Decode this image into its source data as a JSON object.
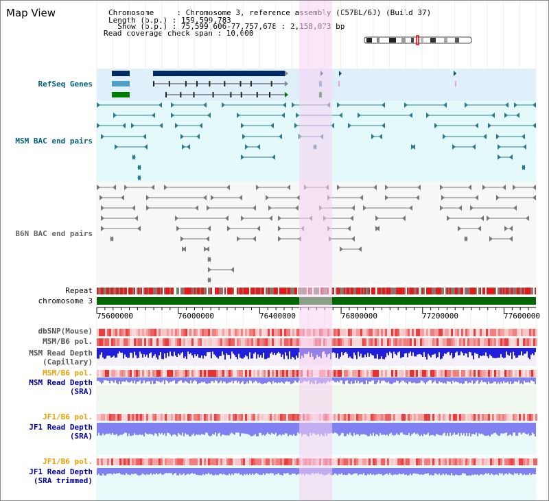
{
  "header": {
    "title": "Map View",
    "info_lines": [
      "Chromosome     : Chromosome 3, reference assembly (C57BL/6J) (Build 37)",
      "Length (b.p.) : 159,599,783",
      "  Show (b.p.) : 75,599,606-77,757,678 : 2,158,073 bp",
      "Read coverage check span : 10,000"
    ]
  },
  "tracks": {
    "refseq": "RefSeq Genes",
    "msm_bac": "MSM BAC end pairs",
    "b6n_bac": "B6N BAC end pairs",
    "repeat": "Repeat",
    "chromosome": "chromosome 3",
    "dbsnp": "dbSNP(Mouse)",
    "msm_b6_pol_1": "MSM/B6 pol.",
    "msm_depth_cap_1": "MSM Read Depth",
    "msm_depth_cap_2": "(Capillary)",
    "msm_b6_pol_2": "MSM/B6 pol.",
    "msm_depth_sra_1": "MSM Read Depth",
    "msm_depth_sra_2": "(SRA)",
    "jf1_b6_pol_1": "JF1/B6 pol.",
    "jf1_depth_sra_1": "JF1 Read Depth",
    "jf1_depth_sra_2": "(SRA)",
    "jf1_b6_pol_2": "JF1/B6 pol.",
    "jf1_depth_trim_1": "JF1 Read Depth",
    "jf1_depth_trim_2": "(SRA trimmed)"
  },
  "axis": {
    "ticks": [
      "75600000",
      "76000000",
      "76400000",
      "76800000",
      "77200000",
      "77600000"
    ]
  },
  "colors": {
    "refseq_band": "#dff0fa",
    "msm_band": "#e4fafa",
    "highlight": "#f7d2f0",
    "gene_navy": "#002a66",
    "gene_steel": "#4fa0c8",
    "gene_green": "#007a00",
    "msm_feature": "#2a7a92",
    "b6n_feature": "#777777",
    "chromosome_bar": "#006600",
    "repeat_red": "#e81818",
    "depth_blue": "#1e1edc",
    "depth_light": "#8080f0",
    "label_teal": "#006080",
    "label_navy": "#0000a0",
    "label_orange": "#e8a000"
  },
  "icons": [
    "chromosome-ideogram-icon"
  ]
}
